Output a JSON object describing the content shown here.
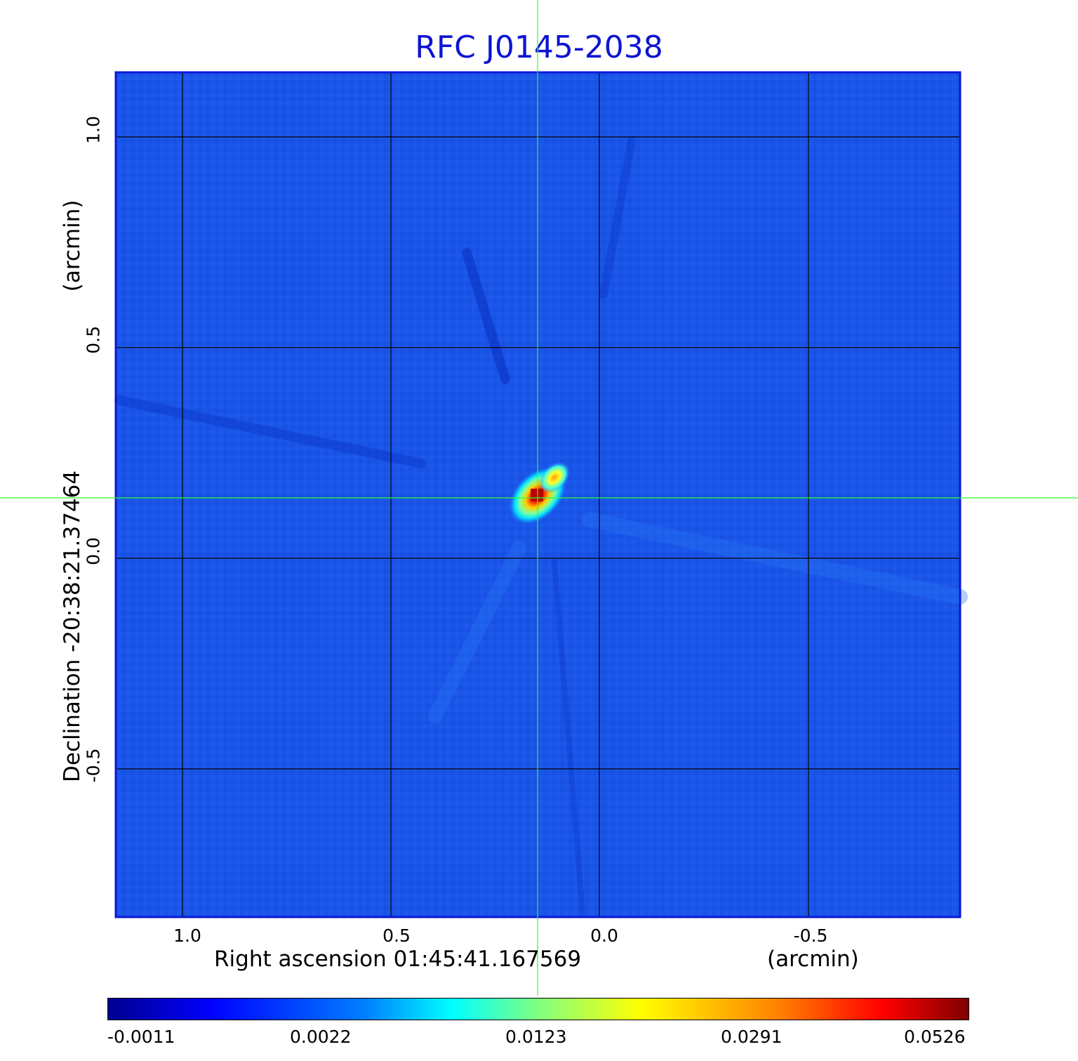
{
  "title": "RFC J0145-2038",
  "axes": {
    "x_label": "Right ascension  01:45:41.167569",
    "x_unit": "(arcmin)",
    "y_label": "Declination  -20:38:21.37464",
    "y_unit": "(arcmin)",
    "x_ticks": [
      "1.0",
      "0.5",
      "0.0",
      "-0.5"
    ],
    "y_ticks": [
      "1.0",
      "0.5",
      "0.0",
      "-0.5"
    ]
  },
  "colorbar": {
    "ticks": [
      "-0.0011",
      "0.0022",
      "0.0123",
      "0.0291",
      "0.0526"
    ]
  },
  "colors": {
    "title": "#0d14d2",
    "background_map": "#1a55e8",
    "crosshair": "#2cff2c",
    "peak": "#cc0000"
  }
}
